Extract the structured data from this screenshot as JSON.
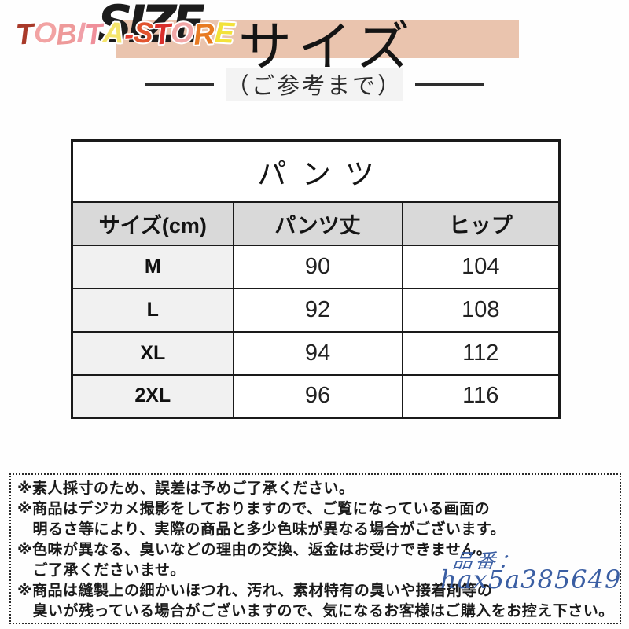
{
  "header": {
    "store_logo": {
      "text": "TOBITA-STORE",
      "letter_colors": [
        "#a93a2a",
        "#f2a3a3",
        "#ee9a9a",
        "#f0a0a8",
        "#ef8f9a",
        "#f5e56b",
        "#e23b2e",
        "#e2542e",
        "#d9302c",
        "#f2a7a7",
        "#e87a22",
        "#f3e23a"
      ]
    },
    "size_en": "SIZE",
    "title": "サイズ",
    "subtitle": "（ご参考まで）",
    "band_color": "#eac4ae"
  },
  "size_table": {
    "caption": "パンツ",
    "columns": [
      "サイズ(cm)",
      "パンツ丈",
      "ヒップ"
    ],
    "rows": [
      {
        "size": "M",
        "length": "90",
        "hip": "104"
      },
      {
        "size": "L",
        "length": "92",
        "hip": "108"
      },
      {
        "size": "XL",
        "length": "94",
        "hip": "112"
      },
      {
        "size": "2XL",
        "length": "96",
        "hip": "116"
      }
    ],
    "header_bg": "#d9d9d9",
    "label_col_bg": "#f1f1f1"
  },
  "notes": {
    "lines": [
      "※素人採寸のため、誤差は予めご了承ください。",
      "※商品はデジカメ撮影をしておりますので、ご覧になっている画面の",
      "　明るさ等により、実際の商品と多少色味が異なる場合がございます。",
      "※色味が異なる、臭いなどの理由の交換、返金はお受けできません。",
      "　ご了承くださいませ。",
      "※商品は縫製上の細かいほつれ、汚れ、素材特有の臭いや接着剤等の",
      "　臭いが残っている場合がございますので、気になるお客様はご購入をお控え下さい。"
    ]
  },
  "watermark": {
    "label": "品番：",
    "code": "hax5a385649",
    "color": "#3a5ea3"
  }
}
